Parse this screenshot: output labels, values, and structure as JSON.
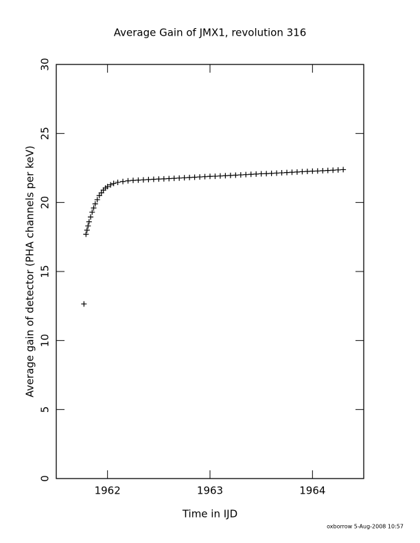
{
  "chart_data": {
    "type": "scatter",
    "title": "Average Gain of JMX1, revolution 316",
    "x_label": "Time in IJD",
    "y_label": "Average gain of detector (PHA channels per keV)",
    "footer": "oxborrow  5-Aug-2008 10:57",
    "xlim": [
      1961.5,
      1964.5
    ],
    "xticks": [
      1962,
      1963,
      1964
    ],
    "ylim": [
      0,
      30
    ],
    "yticks": [
      0,
      5,
      10,
      15,
      20,
      25,
      30
    ],
    "color": "#000000",
    "marker": "+",
    "x": [
      1961.77,
      1961.79,
      1961.8,
      1961.81,
      1961.82,
      1961.835,
      1961.85,
      1961.865,
      1961.88,
      1961.9,
      1961.92,
      1961.94,
      1961.96,
      1961.98,
      1962.0,
      1962.03,
      1962.06,
      1962.1,
      1962.15,
      1962.2,
      1962.25,
      1962.3,
      1962.35,
      1962.4,
      1962.45,
      1962.5,
      1962.55,
      1962.6,
      1962.65,
      1962.7,
      1962.75,
      1962.8,
      1962.85,
      1962.9,
      1962.95,
      1963.0,
      1963.05,
      1963.1,
      1963.15,
      1963.2,
      1963.25,
      1963.3,
      1963.35,
      1963.4,
      1963.45,
      1963.5,
      1963.55,
      1963.6,
      1963.65,
      1963.7,
      1963.75,
      1963.8,
      1963.85,
      1963.9,
      1963.95,
      1964.0,
      1964.05,
      1964.1,
      1964.15,
      1964.2,
      1964.25,
      1964.3
    ],
    "values": [
      12.65,
      17.7,
      18.0,
      18.3,
      18.6,
      18.95,
      19.3,
      19.6,
      19.9,
      20.2,
      20.5,
      20.7,
      20.9,
      21.05,
      21.15,
      21.28,
      21.38,
      21.46,
      21.52,
      21.57,
      21.6,
      21.62,
      21.64,
      21.66,
      21.68,
      21.7,
      21.71,
      21.73,
      21.75,
      21.77,
      21.79,
      21.81,
      21.83,
      21.85,
      21.87,
      21.89,
      21.9,
      21.92,
      21.94,
      21.96,
      21.98,
      22.0,
      22.02,
      22.04,
      22.06,
      22.08,
      22.09,
      22.11,
      22.13,
      22.15,
      22.17,
      22.19,
      22.21,
      22.23,
      22.25,
      22.27,
      22.28,
      22.3,
      22.32,
      22.34,
      22.36,
      22.38
    ]
  }
}
